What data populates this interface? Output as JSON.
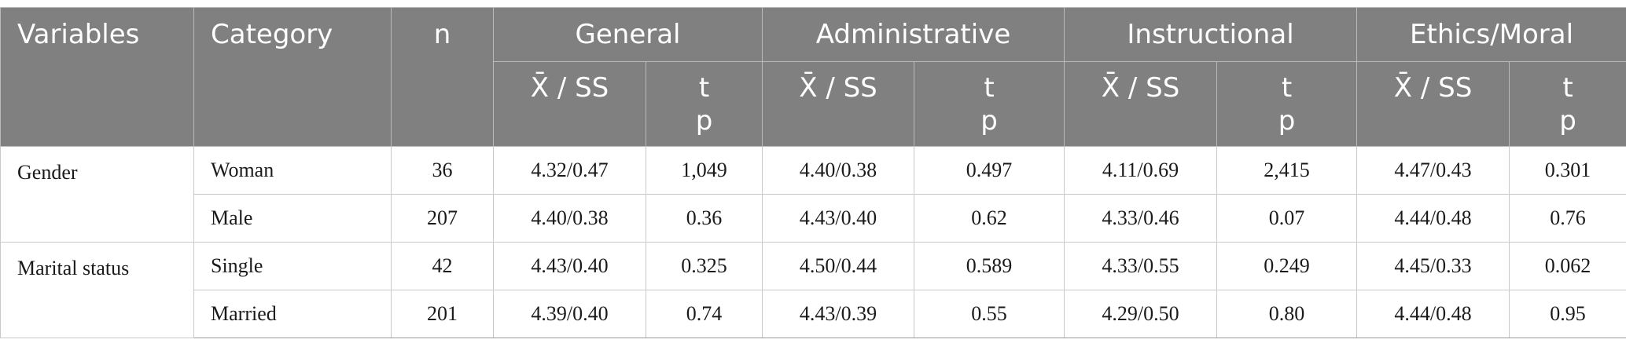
{
  "header": {
    "variables": "Variables",
    "category": "Category",
    "n": "n",
    "groups": [
      "General",
      "Administrative",
      "Instructional",
      "Ethics/Moral"
    ],
    "mean_sd": "X̄ / SS",
    "t_line1": "t",
    "t_line2": "p"
  },
  "rows": [
    {
      "variable": "Gender",
      "category": "Woman",
      "n": "36",
      "general_ms": "4.32/0.47",
      "general_tp": "1,049",
      "admin_ms": "4.40/0.38",
      "admin_tp": "0.497",
      "instr_ms": "4.11/0.69",
      "instr_tp": "2,415",
      "ethics_ms": "4.47/0.43",
      "ethics_tp": "0.301"
    },
    {
      "variable": "",
      "category": "Male",
      "n": "207",
      "general_ms": "4.40/0.38",
      "general_tp": "0.36",
      "admin_ms": "4.43/0.40",
      "admin_tp": "0.62",
      "instr_ms": "4.33/0.46",
      "instr_tp": "0.07",
      "ethics_ms": "4.44/0.48",
      "ethics_tp": "0.76"
    },
    {
      "variable": "Marital status",
      "category": "Single",
      "n": "42",
      "general_ms": "4.43/0.40",
      "general_tp": "0.325",
      "admin_ms": "4.50/0.44",
      "admin_tp": "0.589",
      "instr_ms": "4.33/0.55",
      "instr_tp": "0.249",
      "ethics_ms": "4.45/0.33",
      "ethics_tp": "0.062"
    },
    {
      "variable": "",
      "category": "Married",
      "n": "201",
      "general_ms": "4.39/0.40",
      "general_tp": "0.74",
      "admin_ms": "4.43/0.39",
      "admin_tp": "0.55",
      "instr_ms": "4.29/0.50",
      "instr_tp": "0.80",
      "ethics_ms": "4.44/0.48",
      "ethics_tp": "0.95"
    }
  ]
}
